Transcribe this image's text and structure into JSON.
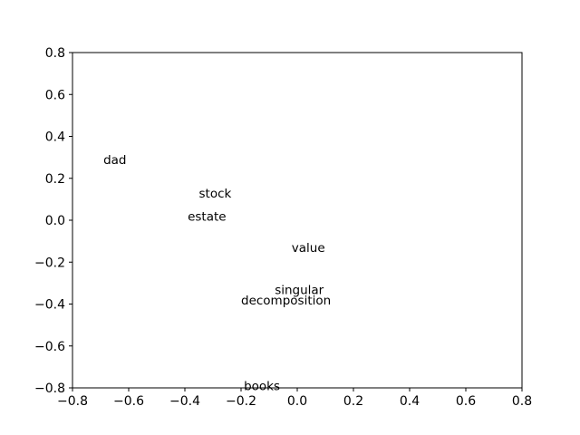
{
  "chart_data": {
    "type": "scatter",
    "title": "",
    "xlabel": "",
    "ylabel": "",
    "xlim": [
      -0.8,
      0.8
    ],
    "ylim": [
      -0.8,
      0.8
    ],
    "grid": false,
    "x_ticks": [
      -0.8,
      -0.6,
      -0.4,
      -0.2,
      0.0,
      0.2,
      0.4,
      0.6,
      0.8
    ],
    "x_tick_labels": [
      "−0.8",
      "−0.6",
      "−0.4",
      "−0.2",
      "0.0",
      "0.2",
      "0.4",
      "0.6",
      "0.8"
    ],
    "y_ticks": [
      -0.8,
      -0.6,
      -0.4,
      -0.2,
      0.0,
      0.2,
      0.4,
      0.6,
      0.8
    ],
    "y_tick_labels": [
      "−0.8",
      "−0.6",
      "−0.4",
      "−0.2",
      "0.0",
      "0.2",
      "0.4",
      "0.6",
      "0.8"
    ],
    "points": [
      {
        "label": "dad",
        "x": -0.69,
        "y": 0.29
      },
      {
        "label": "stock",
        "x": -0.35,
        "y": 0.13
      },
      {
        "label": "estate",
        "x": -0.39,
        "y": 0.02
      },
      {
        "label": "value",
        "x": -0.02,
        "y": -0.13
      },
      {
        "label": "singular",
        "x": -0.08,
        "y": -0.33
      },
      {
        "label": "decomposition",
        "x": -0.2,
        "y": -0.38
      },
      {
        "label": "books",
        "x": -0.19,
        "y": -0.79
      }
    ]
  }
}
